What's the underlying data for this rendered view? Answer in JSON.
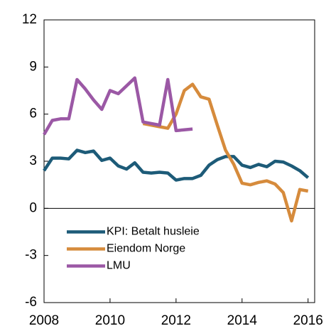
{
  "chart_data": {
    "type": "line",
    "xlim": [
      2008,
      2016.2
    ],
    "xticks": [
      2008,
      2010,
      2012,
      2014,
      2016
    ],
    "ylim": [
      -6,
      12
    ],
    "yticks": [
      -6,
      -3,
      0,
      3,
      6,
      9,
      12
    ],
    "legend": "lower left",
    "series": [
      {
        "name": "KPI: Betalt husleie",
        "color": "#1d5b78",
        "x": [
          2008,
          2008.25,
          2008.5,
          2008.75,
          2009,
          2009.25,
          2009.5,
          2009.75,
          2010,
          2010.25,
          2010.5,
          2010.75,
          2011,
          2011.25,
          2011.5,
          2011.75,
          2012,
          2012.25,
          2012.5,
          2012.75,
          2013,
          2013.25,
          2013.5,
          2013.75,
          2014,
          2014.25,
          2014.5,
          2014.75,
          2015,
          2015.25,
          2015.5,
          2015.75,
          2016
        ],
        "values": [
          2.4,
          3.2,
          3.2,
          3.15,
          3.7,
          3.55,
          3.65,
          3.05,
          3.2,
          2.7,
          2.5,
          2.9,
          2.3,
          2.25,
          2.3,
          2.25,
          1.8,
          1.9,
          1.9,
          2.1,
          2.75,
          3.1,
          3.3,
          3.3,
          2.75,
          2.6,
          2.8,
          2.65,
          3.0,
          2.95,
          2.7,
          2.4,
          1.95
        ]
      },
      {
        "name": "Eiendom Norge",
        "color": "#d68b3c",
        "x": [
          2011,
          2011.25,
          2011.5,
          2011.75,
          2012,
          2012.25,
          2012.5,
          2012.75,
          2013,
          2013.25,
          2013.5,
          2013.75,
          2014,
          2014.25,
          2014.5,
          2014.75,
          2015,
          2015.25,
          2015.5,
          2015.75,
          2016
        ],
        "values": [
          5.4,
          5.3,
          5.2,
          5.1,
          6.0,
          7.5,
          7.9,
          7.1,
          6.95,
          5.3,
          3.7,
          2.8,
          1.6,
          1.5,
          1.65,
          1.75,
          1.55,
          1.0,
          -0.8,
          1.2,
          1.1
        ]
      },
      {
        "name": "LMU",
        "color": "#9b58a5",
        "x": [
          2008,
          2008.25,
          2008.5,
          2008.75,
          2009,
          2009.25,
          2009.5,
          2009.75,
          2010,
          2010.25,
          2010.5,
          2010.75,
          2011,
          2011.25,
          2011.5,
          2011.75,
          2012,
          2012.25,
          2012.5
        ],
        "values": [
          4.7,
          5.6,
          5.7,
          5.7,
          8.2,
          7.6,
          6.9,
          6.3,
          7.5,
          7.3,
          7.8,
          8.3,
          5.5,
          5.4,
          5.3,
          8.2,
          4.95,
          5.0,
          5.05
        ]
      }
    ]
  }
}
